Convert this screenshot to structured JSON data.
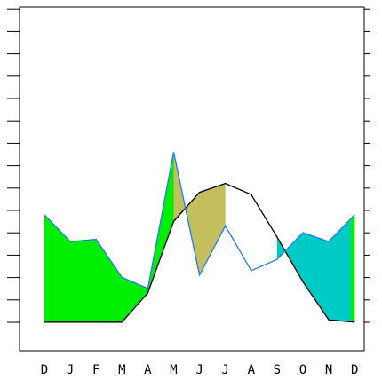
{
  "chart_data": {
    "type": "area",
    "categories": [
      "D",
      "J",
      "F",
      "M",
      "A",
      "M",
      "J",
      "J",
      "A",
      "S",
      "O",
      "N",
      "D"
    ],
    "series": [
      {
        "values": [
          1.0,
          1.0,
          1.0,
          1.0,
          2.3,
          5.5,
          6.8,
          7.2,
          6.7,
          4.8,
          2.8,
          1.1,
          1.0
        ],
        "color": "#000000"
      },
      {
        "values": [
          5.8,
          4.6,
          4.7,
          3.0,
          2.5,
          8.6,
          3.1,
          5.3,
          3.3,
          3.8,
          5.0,
          4.6,
          5.8
        ],
        "color": "#1f78ff"
      }
    ],
    "fills": [
      {
        "from": 0,
        "to": 5,
        "color": "#00ee00"
      },
      {
        "from": 5,
        "to": 7,
        "color": "#c2bf5c"
      },
      {
        "from": 9,
        "to": 12,
        "color": "#00cac6"
      },
      {
        "from": 11.85,
        "to": 12,
        "color": "#00ee00"
      }
    ],
    "ylim": [
      0,
      15
    ],
    "yticks": 15,
    "grid": false
  }
}
